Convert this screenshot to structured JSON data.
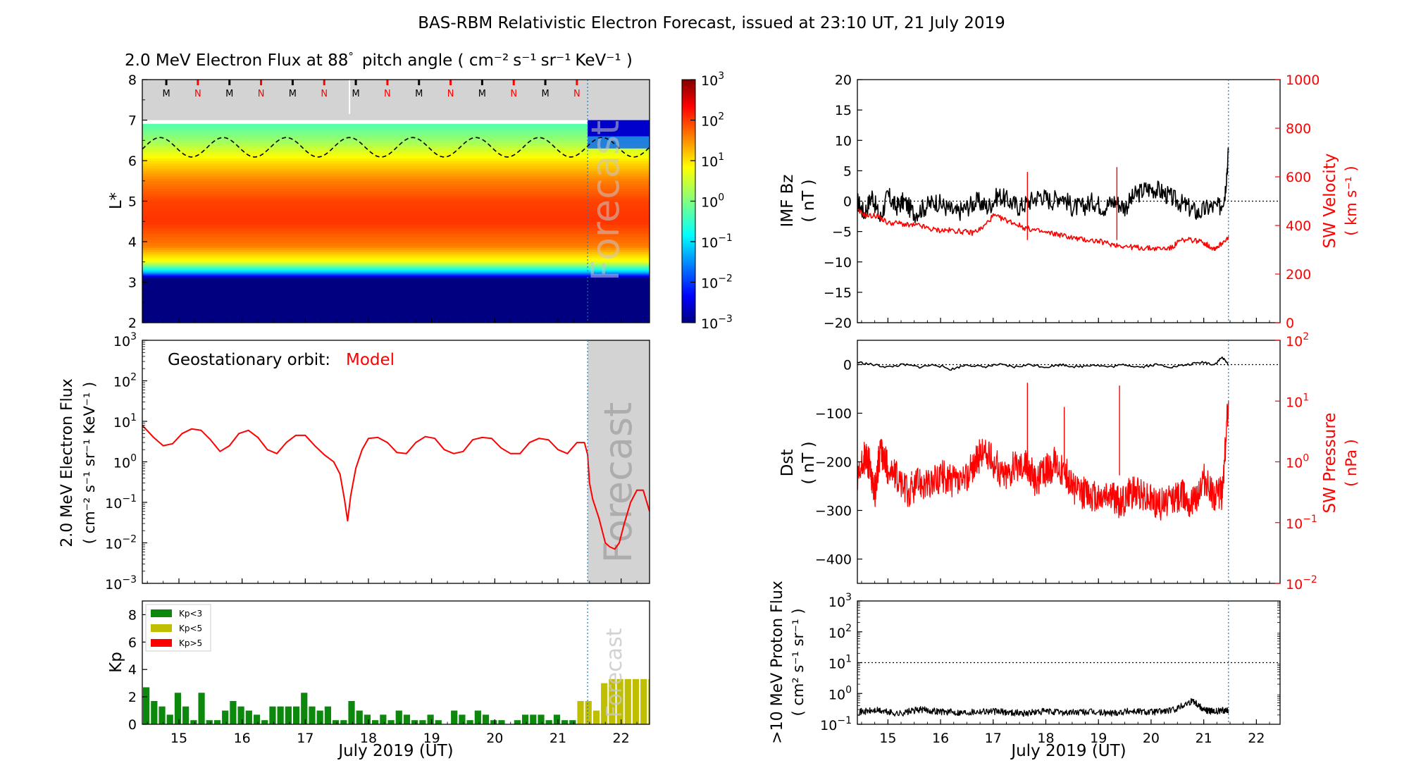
{
  "title": "BAS-RBM Relativistic Electron Forecast, issued at 23:10 UT, 21 July 2019",
  "colors": {
    "model_red": "#ff0000",
    "kp_green": "#0c880c",
    "kp_yellow": "#bfbf00",
    "kp_red": "#ff0000",
    "forecast_grey": "#d3d3d3",
    "divider_blue": "#1f77b4"
  },
  "xaxis": {
    "label": "July 2019 (UT)",
    "ticks": [
      "15",
      "16",
      "17",
      "18",
      "19",
      "20",
      "21",
      "22"
    ],
    "range_days": [
      14.42,
      22.45
    ],
    "forecast_start_day": 21.47
  },
  "chart_data": [
    {
      "id": "lstar_flux",
      "type": "heatmap",
      "title": "2.0 MeV Electron Flux at 88",
      "title_degree": "°",
      "title_units_pre": "pitch angle ( cm",
      "title_units": [
        "cm⁻²",
        "s⁻¹",
        "sr⁻¹",
        "KeV⁻¹"
      ],
      "ylabel": "L*",
      "yticks": [
        "2",
        "3",
        "4",
        "5",
        "6",
        "7",
        "8"
      ],
      "ylim": [
        2,
        8
      ],
      "forecast_watermark": "Forecast",
      "markers": [
        "M",
        "N",
        "M",
        "N",
        "M",
        "N",
        "M",
        "N",
        "M",
        "N",
        "M",
        "N",
        "M",
        "N"
      ],
      "colorbar": {
        "scale": "log",
        "range": [
          0.001,
          1000
        ],
        "tick_bases": [
          "10",
          "10",
          "10",
          "10",
          "10",
          "10",
          "10"
        ],
        "tick_exps": [
          "3",
          "2",
          "1",
          "0",
          "−1",
          "−2",
          "−3"
        ]
      },
      "profile_L_vs_flux": [
        [
          2,
          0.001
        ],
        [
          3.1,
          0.001
        ],
        [
          3.25,
          0.05
        ],
        [
          3.5,
          5
        ],
        [
          3.9,
          40
        ],
        [
          4.5,
          110
        ],
        [
          5,
          90
        ],
        [
          5.5,
          40
        ],
        [
          6,
          10
        ],
        [
          6.5,
          1.5
        ],
        [
          6.9,
          0.5
        ]
      ],
      "plasmapause_Lstar": {
        "mean": 6.33,
        "amplitude": 0.24,
        "period_days": 1.0
      }
    },
    {
      "id": "geo_flux",
      "type": "line",
      "yscale": "log",
      "ylim": [
        0.001,
        1000
      ],
      "ylabel": "2.0 MeV Electron Flux",
      "ylabel_units": [
        "cm⁻²",
        "s⁻¹",
        "sr⁻¹",
        "KeV⁻¹"
      ],
      "annotation": "Geostationary orbit:",
      "annotation_highlight": "Model",
      "forecast_watermark": "Forecast",
      "series": [
        {
          "x": [
            14.42,
            14.6,
            14.75,
            14.9,
            15.05,
            15.2,
            15.35,
            15.5,
            15.65,
            15.8,
            15.95,
            16.1,
            16.25,
            16.4,
            16.55,
            16.7,
            16.85,
            17.0,
            17.15,
            17.3,
            17.45,
            17.55,
            17.62,
            17.67,
            17.72,
            17.8,
            17.9,
            18.0,
            18.15,
            18.3,
            18.45,
            18.6,
            18.75,
            18.9,
            19.05,
            19.2,
            19.35,
            19.5,
            19.65,
            19.8,
            19.95,
            20.1,
            20.25,
            20.4,
            20.55,
            20.7,
            20.85,
            21.0,
            21.15,
            21.3,
            21.42,
            21.47,
            21.5,
            21.55,
            21.65,
            21.75,
            21.82,
            21.9,
            21.97,
            22.05,
            22.15,
            22.25,
            22.35,
            22.45
          ],
          "y": [
            8,
            4,
            2.5,
            2.8,
            5,
            6.5,
            6,
            3.5,
            1.8,
            2.5,
            5,
            6,
            4,
            2,
            1.6,
            3,
            4.5,
            4.5,
            2.5,
            1.5,
            1,
            0.5,
            0.12,
            0.035,
            0.15,
            0.7,
            2,
            3.8,
            4,
            3,
            1.7,
            1.6,
            3,
            4.2,
            3.8,
            2,
            1.6,
            1.8,
            3.5,
            4,
            3.8,
            2.2,
            1.6,
            1.6,
            3,
            3.8,
            3.5,
            2,
            1.6,
            3,
            3,
            1.5,
            0.3,
            0.12,
            0.04,
            0.01,
            0.008,
            0.007,
            0.01,
            0.03,
            0.1,
            0.2,
            0.2,
            0.06
          ]
        }
      ]
    },
    {
      "id": "kp",
      "type": "bar",
      "ylabel": "Kp",
      "ylim": [
        0,
        9
      ],
      "yticks": [
        "0",
        "2",
        "4",
        "6",
        "8"
      ],
      "legend": [
        "Kp<3",
        "Kp<5",
        "Kp>5"
      ],
      "forecast_watermark": "Forecast",
      "bar_width_days": 0.125,
      "values": [
        2.7,
        1.7,
        1.3,
        0.7,
        2.3,
        1.3,
        0.3,
        2.3,
        0.3,
        0.3,
        1,
        1.7,
        1.3,
        1,
        0.7,
        0.3,
        1.3,
        1.3,
        1.3,
        1.3,
        2.3,
        1.3,
        1,
        1.3,
        0.3,
        0.3,
        1.7,
        1,
        0.7,
        0.3,
        0.7,
        0.3,
        1,
        0.7,
        0.3,
        0.3,
        0.7,
        0.3,
        0,
        1,
        0.7,
        0.3,
        1,
        0.7,
        0.3,
        0.3,
        0,
        0.3,
        0.7,
        0.7,
        0.7,
        0.3,
        0.7,
        0.3,
        0.3,
        1.7,
        1.7,
        1,
        3,
        3.3,
        3.3,
        3.3,
        3.3,
        3.3,
        3.3,
        3.3
      ]
    },
    {
      "id": "imf_bz",
      "type": "line",
      "ylabel": "IMF Bz",
      "ylabel_units": "( nT )",
      "ylim": [
        -20,
        20
      ],
      "yticks": [
        "−20",
        "−15",
        "−10",
        "−5",
        "0",
        "5",
        "10",
        "15",
        "20"
      ],
      "right_axis": {
        "label": "SW Velocity",
        "units": "( km s⁻¹ )",
        "ylim": [
          0,
          1000
        ],
        "ticks": [
          "0",
          "200",
          "400",
          "600",
          "800",
          "1000"
        ]
      },
      "series": [
        {
          "axis": "left",
          "x": [
            14.42,
            14.55,
            14.7,
            14.85,
            15.0,
            15.15,
            15.3,
            15.5,
            15.7,
            15.9,
            16.1,
            16.3,
            16.5,
            16.7,
            16.9,
            17.1,
            17.3,
            17.5,
            17.7,
            17.9,
            18.1,
            18.3,
            18.5,
            18.7,
            18.9,
            19.1,
            19.3,
            19.5,
            19.7,
            19.9,
            20.1,
            20.3,
            20.5,
            20.7,
            20.9,
            21.1,
            21.3,
            21.4,
            21.47
          ],
          "y": [
            0,
            -2,
            1,
            -3,
            1,
            -1,
            0,
            -2,
            -1,
            0,
            -1,
            -2,
            -1,
            0,
            -1,
            1,
            0,
            -1,
            0,
            1,
            0,
            1,
            -1,
            -1,
            0,
            -1,
            0,
            -1,
            1,
            2,
            2,
            1,
            0,
            -1,
            -2,
            -1,
            -1,
            1,
            8
          ]
        },
        {
          "axis": "right",
          "x": [
            14.42,
            14.6,
            14.8,
            15.0,
            15.2,
            15.4,
            15.6,
            15.8,
            16.0,
            16.2,
            16.4,
            16.6,
            16.8,
            17.0,
            17.2,
            17.4,
            17.6,
            17.8,
            18.0,
            18.2,
            18.4,
            18.6,
            18.8,
            19.0,
            19.2,
            19.4,
            19.6,
            19.8,
            20.0,
            20.2,
            20.4,
            20.5,
            20.6,
            20.8,
            21.0,
            21.1,
            21.2,
            21.3,
            21.47
          ],
          "y": [
            460,
            440,
            440,
            410,
            410,
            400,
            400,
            385,
            380,
            380,
            375,
            370,
            390,
            440,
            425,
            410,
            390,
            380,
            370,
            365,
            355,
            345,
            340,
            335,
            325,
            318,
            312,
            308,
            306,
            305,
            308,
            330,
            340,
            340,
            330,
            315,
            305,
            318,
            355
          ]
        }
      ]
    },
    {
      "id": "dst",
      "type": "line",
      "ylabel": "Dst",
      "ylabel_units": "( nT )",
      "ylim": [
        -450,
        50
      ],
      "yticks": [
        "0",
        "−100",
        "−200",
        "−300",
        "−400"
      ],
      "right_axis": {
        "label": "SW Pressure",
        "units": "( nPa )",
        "scale": "log",
        "ylim": [
          0.01,
          100
        ],
        "tick_bases": [
          "10",
          "10",
          "10",
          "10",
          "10"
        ],
        "tick_exps": [
          "2",
          "1",
          "0",
          "−1",
          "−2"
        ]
      },
      "series": [
        {
          "axis": "left",
          "x": [
            14.42,
            14.7,
            15.0,
            15.3,
            15.6,
            15.9,
            16.2,
            16.5,
            16.8,
            17.1,
            17.4,
            17.7,
            18.0,
            18.3,
            18.6,
            18.9,
            19.2,
            19.5,
            19.8,
            20.1,
            20.4,
            20.7,
            21.0,
            21.2,
            21.35,
            21.47
          ],
          "y": [
            5,
            0,
            -5,
            0,
            -5,
            0,
            -10,
            0,
            -5,
            0,
            -5,
            0,
            -5,
            0,
            -5,
            0,
            -5,
            0,
            -5,
            0,
            -5,
            0,
            5,
            0,
            15,
            0
          ]
        },
        {
          "axis": "right",
          "x": [
            14.42,
            14.55,
            14.65,
            14.75,
            14.85,
            15.0,
            15.2,
            15.4,
            15.6,
            15.8,
            16.0,
            16.2,
            16.4,
            16.6,
            16.8,
            17.0,
            17.2,
            17.4,
            17.6,
            17.7,
            17.8,
            18.0,
            18.2,
            18.4,
            18.6,
            18.8,
            19.0,
            19.2,
            19.4,
            19.6,
            19.8,
            20.0,
            20.2,
            20.4,
            20.6,
            20.8,
            21.0,
            21.2,
            21.35,
            21.47
          ],
          "y": [
            0.4,
            1.2,
            0.9,
            0.3,
            1.5,
            0.8,
            0.5,
            0.3,
            0.5,
            0.4,
            0.6,
            0.5,
            0.4,
            0.8,
            1.5,
            1.0,
            0.6,
            0.8,
            1.0,
            0.7,
            0.5,
            0.7,
            1.0,
            0.6,
            0.3,
            0.3,
            0.25,
            0.3,
            0.2,
            0.3,
            0.3,
            0.25,
            0.2,
            0.25,
            0.3,
            0.2,
            0.5,
            0.3,
            0.3,
            10
          ]
        }
      ]
    },
    {
      "id": "proton_flux",
      "type": "line",
      "ylabel": ">10 MeV Proton Flux",
      "ylabel_units": [
        "cm²",
        "s⁻¹",
        "sr⁻¹"
      ],
      "yscale": "log",
      "ylim": [
        0.1,
        1000
      ],
      "tick_bases": [
        "10",
        "10",
        "10",
        "10",
        "10"
      ],
      "tick_exps": [
        "3",
        "2",
        "1",
        "0",
        "−1"
      ],
      "threshold": 10,
      "series": [
        {
          "x": [
            14.42,
            14.8,
            15.2,
            15.6,
            16.0,
            16.4,
            16.8,
            17.2,
            17.6,
            18.0,
            18.4,
            18.8,
            19.2,
            19.6,
            20.0,
            20.4,
            20.8,
            21.0,
            21.2,
            21.47
          ],
          "y": [
            0.25,
            0.28,
            0.22,
            0.3,
            0.26,
            0.24,
            0.27,
            0.25,
            0.23,
            0.26,
            0.24,
            0.25,
            0.23,
            0.27,
            0.25,
            0.28,
            0.6,
            0.3,
            0.25,
            0.3
          ]
        }
      ]
    }
  ]
}
